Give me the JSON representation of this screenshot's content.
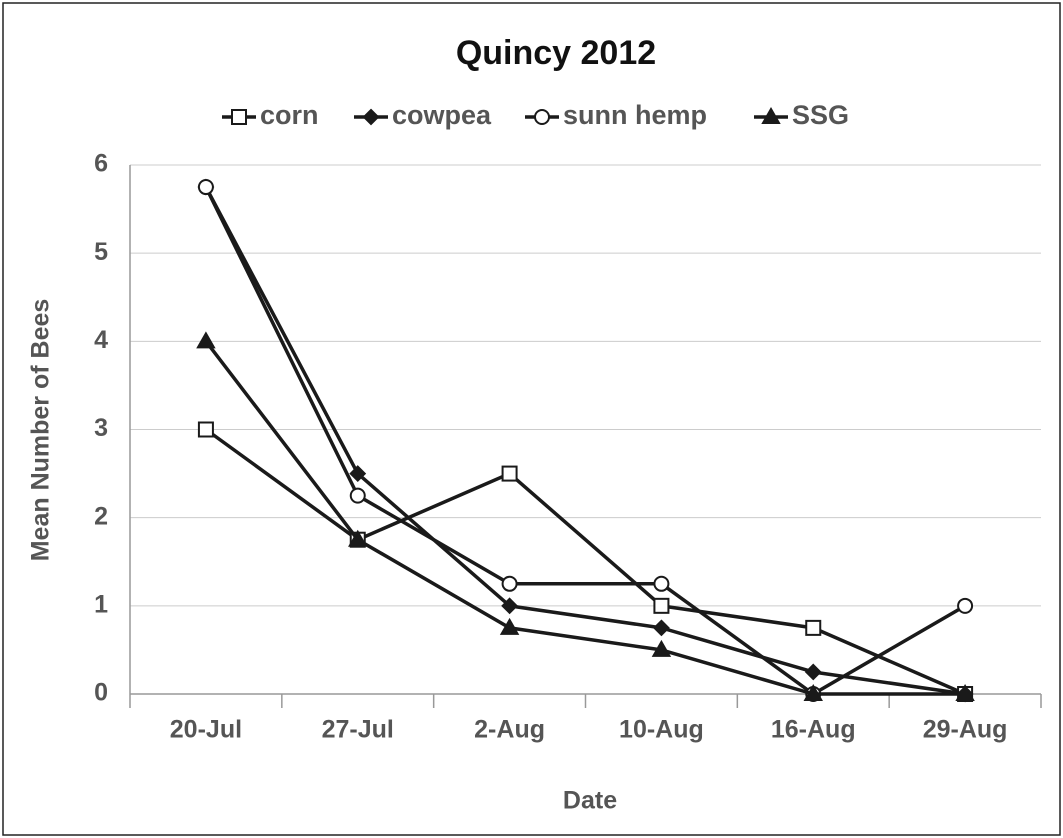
{
  "chart_data": {
    "type": "line",
    "title": "Quincy 2012",
    "x_label": "Date",
    "y_label": "Mean Number of Bees",
    "categories": [
      "20-Jul",
      "27-Jul",
      "2-Aug",
      "10-Aug",
      "16-Aug",
      "29-Aug"
    ],
    "series": [
      {
        "name": "corn",
        "color": "#1a1a1a",
        "marker": "open-square",
        "values": [
          3,
          1.75,
          2.5,
          1,
          0.75,
          0
        ]
      },
      {
        "name": "cowpea",
        "color": "#1a1a1a",
        "marker": "diamond",
        "values": [
          5.75,
          2.5,
          1,
          0.75,
          0.25,
          0
        ]
      },
      {
        "name": "sunn hemp",
        "color": "#1a1a1a",
        "marker": "open-circle",
        "values": [
          5.75,
          2.25,
          1.25,
          1.25,
          0,
          1
        ]
      },
      {
        "name": "SSG",
        "color": "#1a1a1a",
        "marker": "triangle",
        "values": [
          4,
          1.75,
          0.75,
          0.5,
          0,
          0
        ]
      }
    ],
    "ylim": [
      0,
      6
    ],
    "yticks": [
      0,
      1,
      2,
      3,
      4,
      5,
      6
    ],
    "grid": true,
    "legend": "top"
  }
}
